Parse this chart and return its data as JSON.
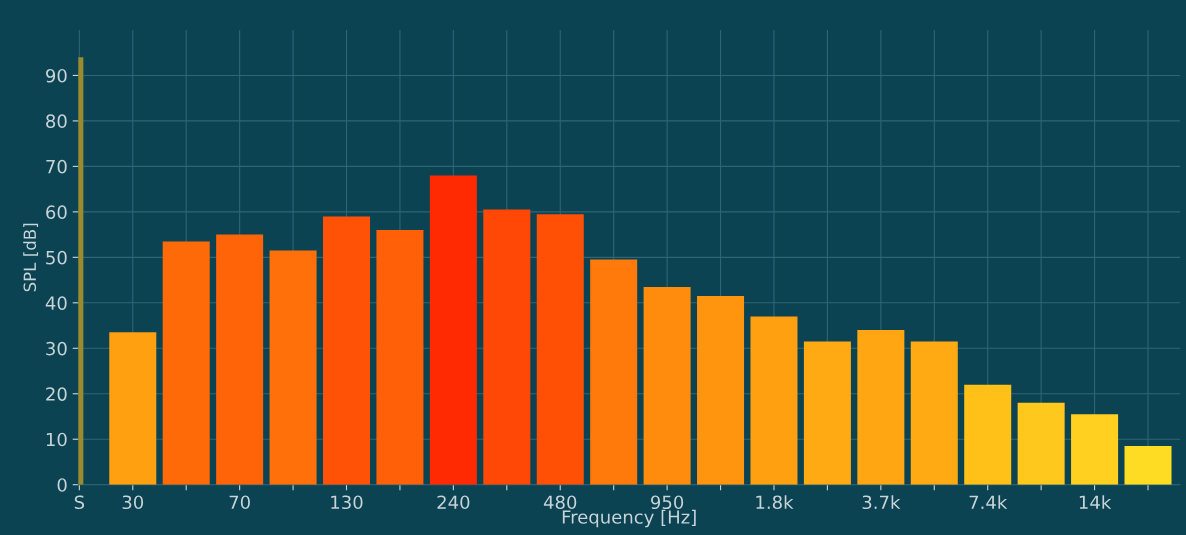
{
  "chart_data": {
    "type": "bar",
    "xlabel": "Frequency [Hz]",
    "ylabel": "SPL [dB]",
    "categories": [
      "S",
      "30",
      null,
      "70",
      null,
      "130",
      null,
      "240",
      null,
      "480",
      null,
      "950",
      null,
      "1.8k",
      null,
      "3.7k",
      null,
      "7.4k",
      null,
      "14k",
      null
    ],
    "series": [
      {
        "colors": [
          "#9a8a30",
          null,
          null,
          null,
          null,
          null,
          null,
          null,
          null,
          null,
          null,
          null,
          null,
          null,
          null,
          null,
          null,
          null,
          null,
          null,
          null
        ],
        "values": [
          94,
          null,
          null,
          null,
          null,
          null,
          null,
          null,
          null,
          null,
          null,
          null,
          null,
          null,
          null,
          null,
          null,
          null,
          null,
          null,
          null
        ]
      },
      {
        "colors": [
          null,
          "#ffa010",
          "#ff6a08",
          "#ff6408",
          "#ff700a",
          "#ff5206",
          "#ff6008",
          "#ff2a02",
          "#ff4805",
          "#ff5006",
          "#ff7a0a",
          "#ff8c0c",
          "#ff940e",
          "#ffa010",
          "#ffaa12",
          "#ffa612",
          "#ffaa12",
          "#ffc018",
          "#ffc81c",
          "#ffd020",
          "#ffdc24"
        ],
        "values": [
          null,
          33.5,
          53.5,
          55,
          51.5,
          59,
          56,
          68,
          60.5,
          59.5,
          49.5,
          43.5,
          41.5,
          37,
          31.5,
          34,
          31.5,
          22,
          18,
          15.5,
          8.5
        ]
      }
    ],
    "ylim": [
      0,
      100
    ],
    "yticks": [
      0,
      10,
      20,
      30,
      40,
      50,
      60,
      70,
      80,
      90
    ],
    "grid": true
  }
}
